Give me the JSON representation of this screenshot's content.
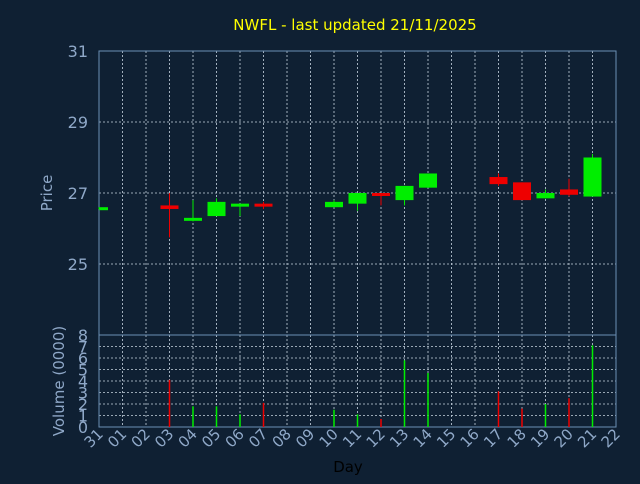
{
  "chart_data": [
    {
      "type": "candlestick",
      "title": "NWFL - last updated 21/11/2025",
      "ylabel": "Price",
      "xlabel": "",
      "ylim": [
        23,
        31
      ],
      "yticks": [
        25,
        27,
        29,
        31
      ],
      "grid": true,
      "x_tick_labels": [
        "31",
        "01",
        "02",
        "03",
        "04",
        "05",
        "06",
        "07",
        "08",
        "09",
        "10",
        "11",
        "12",
        "13",
        "14",
        "15",
        "16",
        "17",
        "18",
        "19",
        "20",
        "21",
        "22"
      ],
      "candles": [
        {
          "day": "31",
          "open": 26.6,
          "high": 26.6,
          "low": 26.55,
          "close": 26.6
        },
        {
          "day": "03",
          "open": 26.65,
          "high": 27.0,
          "low": 25.75,
          "close": 26.55
        },
        {
          "day": "04",
          "open": 26.3,
          "high": 26.8,
          "low": 26.2,
          "close": 26.3
        },
        {
          "day": "05",
          "open": 26.35,
          "high": 26.85,
          "low": 26.35,
          "close": 26.75
        },
        {
          "day": "06",
          "open": 26.65,
          "high": 26.7,
          "low": 26.35,
          "close": 26.7
        },
        {
          "day": "07",
          "open": 26.7,
          "high": 26.75,
          "low": 26.55,
          "close": 26.65
        },
        {
          "day": "10",
          "open": 26.6,
          "high": 26.8,
          "low": 26.6,
          "close": 26.75
        },
        {
          "day": "11",
          "open": 26.7,
          "high": 27.0,
          "low": 26.5,
          "close": 27.0
        },
        {
          "day": "12",
          "open": 27.0,
          "high": 27.0,
          "low": 26.65,
          "close": 26.95
        },
        {
          "day": "13",
          "open": 26.8,
          "high": 27.2,
          "low": 26.65,
          "close": 27.2
        },
        {
          "day": "14",
          "open": 27.15,
          "high": 27.55,
          "low": 27.15,
          "close": 27.55
        },
        {
          "day": "17",
          "open": 27.45,
          "high": 27.55,
          "low": 27.2,
          "close": 27.25
        },
        {
          "day": "18",
          "open": 27.3,
          "high": 27.3,
          "low": 26.8,
          "close": 26.8
        },
        {
          "day": "19",
          "open": 26.85,
          "high": 27.1,
          "low": 26.85,
          "close": 27.0
        },
        {
          "day": "20",
          "open": 27.1,
          "high": 27.4,
          "low": 26.9,
          "close": 26.95
        },
        {
          "day": "21",
          "open": 26.9,
          "high": 28.1,
          "low": 26.9,
          "close": 28.0
        }
      ]
    },
    {
      "type": "bar",
      "xlabel": "Day",
      "ylabel": "Volume (0000)",
      "ylim": [
        0,
        8
      ],
      "yticks": [
        0,
        1,
        2,
        3,
        4,
        5,
        6,
        7,
        8
      ],
      "grid": true,
      "categories": [
        "31",
        "03",
        "04",
        "05",
        "06",
        "07",
        "10",
        "11",
        "12",
        "13",
        "14",
        "17",
        "18",
        "19",
        "20",
        "21"
      ],
      "values": [
        0,
        4.1,
        1.8,
        1.8,
        1.1,
        2.1,
        1.5,
        1.1,
        0.7,
        5.8,
        4.7,
        3.1,
        1.6,
        2.0,
        2.5,
        7.1
      ],
      "direction": [
        "up",
        "down",
        "up",
        "up",
        "up",
        "down",
        "up",
        "up",
        "down",
        "up",
        "up",
        "down",
        "down",
        "up",
        "down",
        "up"
      ]
    }
  ],
  "colors": {
    "background": "#0f2033",
    "plot_border": "#6b8fb5",
    "grid": "#c8d4e0",
    "axis_text": "#8fa8c8",
    "title": "#ffff00",
    "up": "#00ee00",
    "down": "#ee0000"
  }
}
